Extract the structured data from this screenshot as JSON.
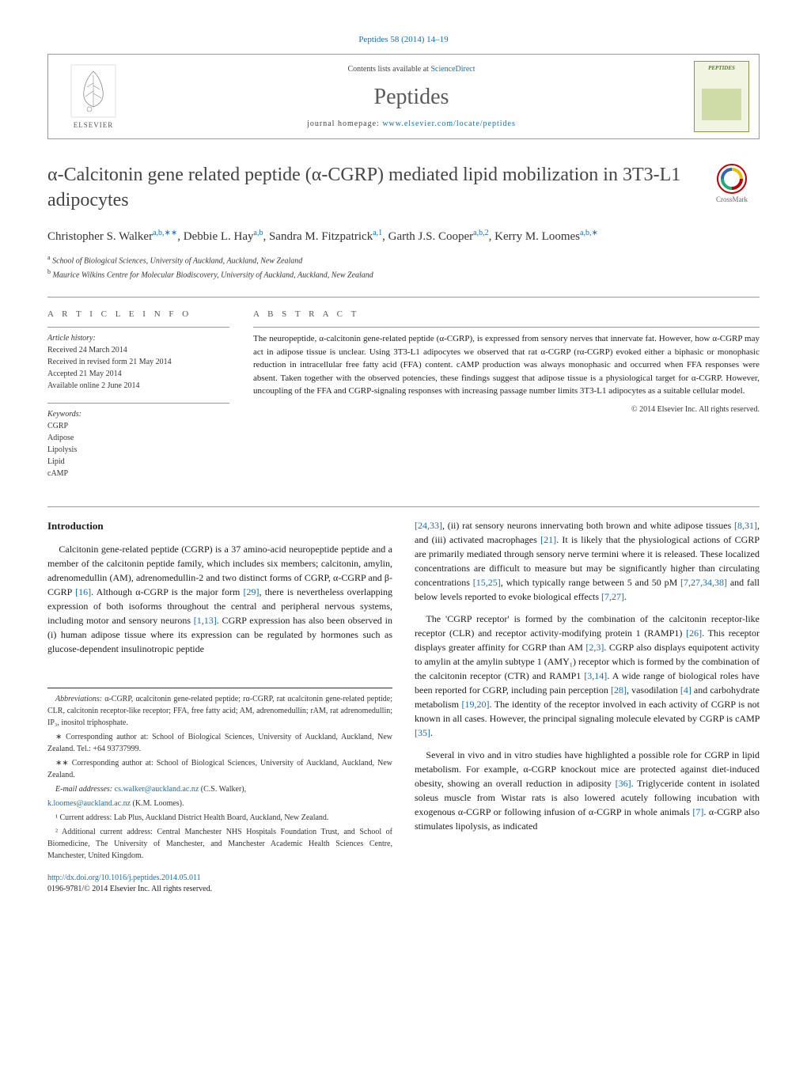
{
  "top_link_text": "Peptides 58 (2014) 14–19",
  "header": {
    "elsevier_label": "ELSEVIER",
    "contents_prefix": "Contents lists available at ",
    "contents_link": "ScienceDirect",
    "journal_name": "Peptides",
    "homepage_prefix": "journal homepage: ",
    "homepage_url": "www.elsevier.com/locate/peptides",
    "cover_title": "PEPTIDES"
  },
  "title": "α-Calcitonin gene related peptide (α-CGRP) mediated lipid mobilization in 3T3-L1 adipocytes",
  "crossmark_label": "CrossMark",
  "authors_html": "Christopher S. Walker",
  "authors": [
    {
      "name": "Christopher S. Walker",
      "sup": "a,b,∗∗"
    },
    {
      "name": "Debbie L. Hay",
      "sup": "a,b"
    },
    {
      "name": "Sandra M. Fitzpatrick",
      "sup": "a,1"
    },
    {
      "name": "Garth J.S. Cooper",
      "sup": "a,b,2"
    },
    {
      "name": "Kerry M. Loomes",
      "sup": "a,b,∗"
    }
  ],
  "affiliations": [
    {
      "sup": "a",
      "text": "School of Biological Sciences, University of Auckland, Auckland, New Zealand"
    },
    {
      "sup": "b",
      "text": "Maurice Wilkins Centre for Molecular Biodiscovery, University of Auckland, Auckland, New Zealand"
    }
  ],
  "article_info": {
    "label": "A R T I C L E   I N F O",
    "history_label": "Article history:",
    "history": [
      "Received 24 March 2014",
      "Received in revised form 21 May 2014",
      "Accepted 21 May 2014",
      "Available online 2 June 2014"
    ],
    "keywords_label": "Keywords:",
    "keywords": [
      "CGRP",
      "Adipose",
      "Lipolysis",
      "Lipid",
      "cAMP"
    ]
  },
  "abstract": {
    "label": "A B S T R A C T",
    "text": "The neuropeptide, α-calcitonin gene-related peptide (α-CGRP), is expressed from sensory nerves that innervate fat. However, how α-CGRP may act in adipose tissue is unclear. Using 3T3-L1 adipocytes we observed that rat α-CGRP (rα-CGRP) evoked either a biphasic or monophasic reduction in intracellular free fatty acid (FFA) content. cAMP production was always monophasic and occurred when FFA responses were absent. Taken together with the observed potencies, these findings suggest that adipose tissue is a physiological target for α-CGRP. However, uncoupling of the FFA and CGRP-signaling responses with increasing passage number limits 3T3-L1 adipocytes as a suitable cellular model.",
    "copyright": "© 2014 Elsevier Inc. All rights reserved."
  },
  "body": {
    "intro_heading": "Introduction",
    "col1_p1_a": "Calcitonin gene-related peptide (CGRP) is a 37 amino-acid neuropeptide peptide and a member of the calcitonin peptide family, which includes six members; calcitonin, amylin, adrenomedullin (AM), adrenomedullin-2 and two distinct forms of CGRP, α-CGRP and β-CGRP ",
    "ref1": "[16]",
    "col1_p1_b": ". Although α-CGRP is the major form ",
    "ref2": "[29]",
    "col1_p1_c": ", there is nevertheless overlapping expression of both isoforms throughout the central and peripheral nervous systems, including motor and sensory neurons ",
    "ref3": "[1,13]",
    "col1_p1_d": ". CGRP expression has also been observed in (i) human adipose tissue where its expression can be regulated by hormones such as glucose-dependent insulinotropic peptide",
    "col2_p1_a": "",
    "ref4": "[24,33]",
    "col2_p1_b": ", (ii) rat sensory neurons innervating both brown and white adipose tissues ",
    "ref5": "[8,31]",
    "col2_p1_c": ", and (iii) activated macrophages ",
    "ref6": "[21]",
    "col2_p1_d": ". It is likely that the physiological actions of CGRP are primarily mediated through sensory nerve termini where it is released. These localized concentrations are difficult to measure but may be significantly higher than circulating concentrations ",
    "ref7": "[15,25]",
    "col2_p1_e": ", which typically range between 5 and 50 pM ",
    "ref8": "[7,27,34,38]",
    "col2_p1_f": " and fall below levels reported to evoke biological effects ",
    "ref9": "[7,27]",
    "col2_p1_g": ".",
    "col2_p2_a": "The 'CGRP receptor' is formed by the combination of the calcitonin receptor-like receptor (CLR) and receptor activity-modifying protein 1 (RAMP1) ",
    "ref10": "[26]",
    "col2_p2_b": ". This receptor displays greater affinity for CGRP than AM ",
    "ref11": "[2,3]",
    "col2_p2_c": ". CGRP also displays equipotent activity to amylin at the amylin subtype 1 (AMY₁) receptor which is formed by the combination of the calcitonin receptor (CTR) and RAMP1 ",
    "ref12": "[3,14]",
    "col2_p2_d": ". A wide range of biological roles have been reported for CGRP, including pain perception ",
    "ref13": "[28]",
    "col2_p2_e": ", vasodilation ",
    "ref14": "[4]",
    "col2_p2_f": " and carbohydrate metabolism ",
    "ref15": "[19,20]",
    "col2_p2_g": ". The identity of the receptor involved in each activity of CGRP is not known in all cases. However, the principal signaling molecule elevated by CGRP is cAMP ",
    "ref16": "[35]",
    "col2_p2_h": ".",
    "col2_p3_a": "Several in vivo and in vitro studies have highlighted a possible role for CGRP in lipid metabolism. For example, α-CGRP knockout mice are protected against diet-induced obesity, showing an overall reduction in adiposity ",
    "ref17": "[36]",
    "col2_p3_b": ". Triglyceride content in isolated soleus muscle from Wistar rats is also lowered acutely following incubation with exogenous α-CGRP or following infusion of α-CGRP in whole animals ",
    "ref18": "[7]",
    "col2_p3_c": ". α-CGRP also stimulates lipolysis, as indicated"
  },
  "footnotes": {
    "abbrev_label": "Abbreviations:",
    "abbrev_text": " α-CGRP, αcalcitonin gene-related peptide; rα-CGRP, rat αcalcitonin gene-related peptide; CLR, calcitonin receptor-like receptor; FFA, free fatty acid; AM, adrenomedullin; rAM, rat adrenomedullin; IP₃, inositol triphosphate.",
    "star1": "∗ Corresponding author at: School of Biological Sciences, University of Auckland, Auckland, New Zealand. Tel.: +64 93737999.",
    "star2": "∗∗ Corresponding author at: School of Biological Sciences, University of Auckland, Auckland, New Zealand.",
    "email_label": "E-mail addresses: ",
    "email1": "cs.walker@auckland.ac.nz",
    "email1_name": " (C.S. Walker),",
    "email2": "k.loomes@auckland.ac.nz",
    "email2_name": " (K.M. Loomes).",
    "fn1": "¹ Current address: Lab Plus, Auckland District Health Board, Auckland, New Zealand.",
    "fn2": "² Additional current address: Central Manchester NHS Hospitals Foundation Trust, and School of Biomedicine, The University of Manchester, and Manchester Academic Health Sciences Centre, Manchester, United Kingdom."
  },
  "doi": {
    "url": "http://dx.doi.org/10.1016/j.peptides.2014.05.011",
    "issn_line": "0196-9781/© 2014 Elsevier Inc. All rights reserved."
  },
  "colors": {
    "link": "#1a6ba8",
    "elsevier_orange": "#f28c28",
    "text": "#1a1a1a",
    "gray_heading": "#5a5a5a",
    "border": "#999999"
  }
}
